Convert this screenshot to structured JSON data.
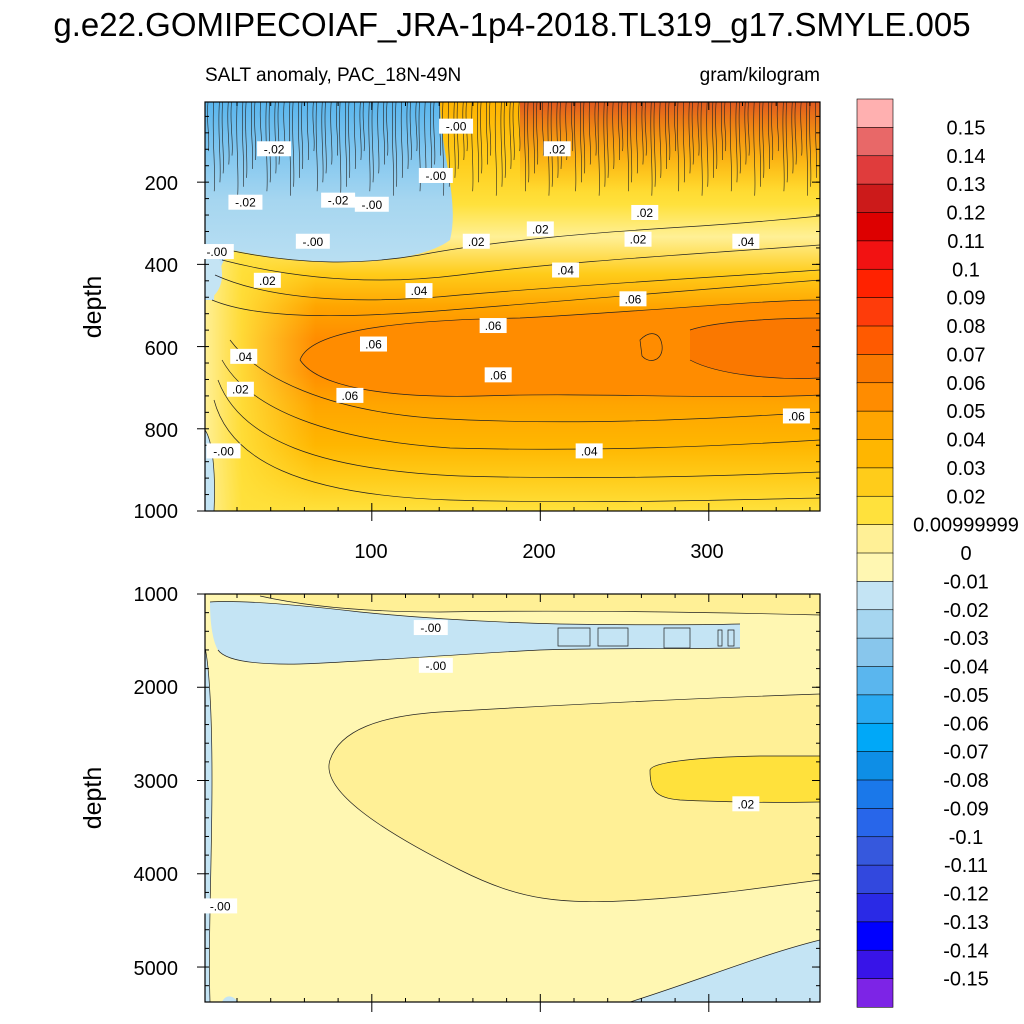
{
  "figure": {
    "title": "g.e22.GOMIPECOIAF_JRA-1p4-2018.TL319_g17.SMYLE.005",
    "subtitle_left": "SALT anomaly, PAC_18N-49N",
    "subtitle_right": "gram/kilogram"
  },
  "colorbar": {
    "labels": [
      "0.15",
      "0.14",
      "0.13",
      "0.12",
      "0.11",
      "0.1",
      "0.09",
      "0.08",
      "0.07",
      "0.06",
      "0.05",
      "0.04",
      "0.03",
      "0.02",
      "0.00999999",
      "0",
      "-0.01",
      "-0.02",
      "-0.03",
      "-0.04",
      "-0.05",
      "-0.06",
      "-0.07",
      "-0.08",
      "-0.09",
      "-0.1",
      "-0.11",
      "-0.12",
      "-0.13",
      "-0.14",
      "-0.15"
    ],
    "colors": [
      "#ffb0b0",
      "#e86868",
      "#e03c3c",
      "#cc1a1a",
      "#dd0000",
      "#f21212",
      "#ff2200",
      "#fe3c0a",
      "#ff5a00",
      "#fa7800",
      "#ff8c00",
      "#ffa500",
      "#ffb600",
      "#ffcc1a",
      "#ffe13c",
      "#fff096",
      "#fff7b2",
      "#c4e4f4",
      "#a6d6f0",
      "#88c6ec",
      "#5ab6ee",
      "#2aaaf2",
      "#00a8f8",
      "#0e8ee6",
      "#1a78ea",
      "#2866ea",
      "#3658dd",
      "#3248de",
      "#2a2ae6",
      "#0000ff",
      "#3814e8",
      "#7d24e6"
    ]
  },
  "chart_data": [
    {
      "type": "heatmap",
      "panel": "upper",
      "title": "SALT anomaly, PAC_18N-49N",
      "units": "gram/kilogram",
      "xlabel": "",
      "ylabel": "depth",
      "xlim": [
        1,
        366
      ],
      "ylim": [
        1000,
        5
      ],
      "xticks": [
        100,
        200,
        300
      ],
      "yticks": [
        200,
        400,
        600,
        800,
        1000
      ],
      "contour_labels": [
        {
          "text": "-.02",
          "x": 42,
          "y": 120
        },
        {
          "text": "-.02",
          "x": 25,
          "y": 250
        },
        {
          "text": "-.02",
          "x": 80,
          "y": 245
        },
        {
          "text": "-.00",
          "x": 150,
          "y": 65
        },
        {
          "text": "-.00",
          "x": 138,
          "y": 185
        },
        {
          "text": "-.00",
          "x": 100,
          "y": 255
        },
        {
          "text": "-.00",
          "x": 65,
          "y": 345
        },
        {
          "text": "-.00",
          "x": 8,
          "y": 370
        },
        {
          "text": ".02",
          "x": 210,
          "y": 120
        },
        {
          "text": ".02",
          "x": 200,
          "y": 315
        },
        {
          "text": ".02",
          "x": 162,
          "y": 345
        },
        {
          "text": ".02",
          "x": 262,
          "y": 275
        },
        {
          "text": ".02",
          "x": 258,
          "y": 340
        },
        {
          "text": ".02",
          "x": 38,
          "y": 440
        },
        {
          "text": ".02",
          "x": 22,
          "y": 705
        },
        {
          "text": ".04",
          "x": 215,
          "y": 415
        },
        {
          "text": ".04",
          "x": 128,
          "y": 465
        },
        {
          "text": ".04",
          "x": 322,
          "y": 345
        },
        {
          "text": ".04",
          "x": 24,
          "y": 625
        },
        {
          "text": ".04",
          "x": 229,
          "y": 855
        },
        {
          "text": ".06",
          "x": 255,
          "y": 485
        },
        {
          "text": ".06",
          "x": 172,
          "y": 550
        },
        {
          "text": ".06",
          "x": 101,
          "y": 595
        },
        {
          "text": ".06",
          "x": 175,
          "y": 670
        },
        {
          "text": ".06",
          "x": 87,
          "y": 720
        },
        {
          "text": ".06",
          "x": 352,
          "y": 770
        },
        {
          "text": "-.00",
          "x": 12,
          "y": 855
        }
      ]
    },
    {
      "type": "heatmap",
      "panel": "lower",
      "xlabel": "",
      "ylabel": "depth",
      "xlim": [
        1,
        366
      ],
      "ylim": [
        5375,
        1000
      ],
      "xticks": [
        100,
        200,
        300
      ],
      "yticks": [
        1000,
        2000,
        3000,
        4000,
        5000
      ],
      "contour_labels": [
        {
          "text": "-.00",
          "x": 135,
          "y": 1365
        },
        {
          "text": "-.00",
          "x": 138,
          "y": 1770
        },
        {
          "text": ".02",
          "x": 322,
          "y": 3255
        },
        {
          "text": "-.00",
          "x": 10,
          "y": 4350
        }
      ]
    }
  ]
}
